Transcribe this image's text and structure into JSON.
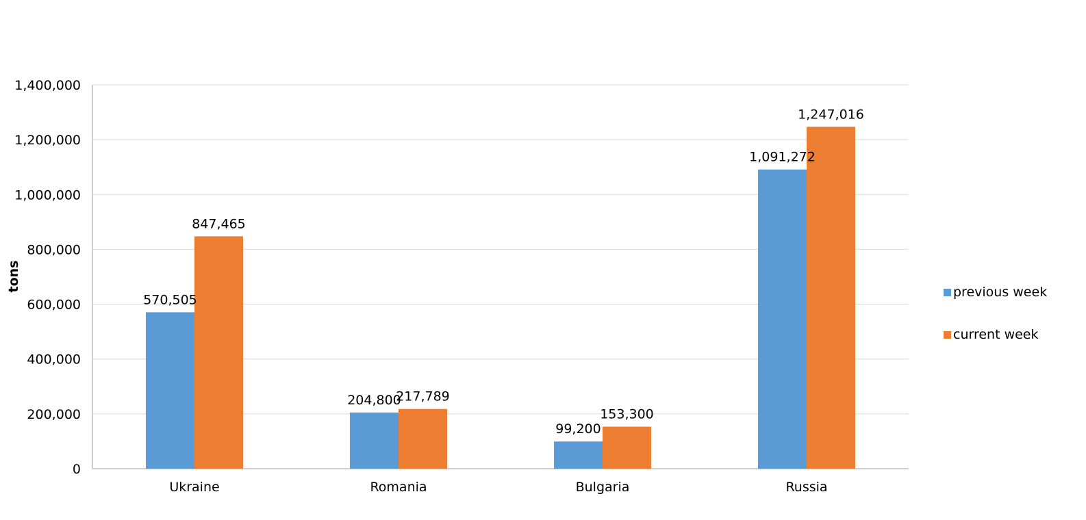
{
  "chart_data": {
    "type": "bar",
    "title": "",
    "xlabel": "",
    "ylabel": "tons",
    "categories": [
      "Ukraine",
      "Romania",
      "Bulgaria",
      "Russia"
    ],
    "series": [
      {
        "name": "previous week",
        "values": [
          570505,
          204800,
          99200,
          1091272
        ],
        "color": "#5b9bd5"
      },
      {
        "name": "current week",
        "values": [
          847465,
          217789,
          153300,
          1247016
        ],
        "color": "#ed7d31"
      }
    ],
    "data_labels": [
      [
        "570,505",
        "204,800",
        "99,200",
        "1,091,272"
      ],
      [
        "847,465",
        "217,789",
        "153,300",
        "1,247,016"
      ]
    ],
    "ylim": [
      0,
      1400000
    ],
    "yticks": [
      0,
      200000,
      400000,
      600000,
      800000,
      1000000,
      1200000,
      1400000
    ],
    "ytick_labels": [
      "0",
      "200,000",
      "400,000",
      "600,000",
      "800,000",
      "1,000,000",
      "1,200,000",
      "1,400,000"
    ],
    "grid": true,
    "legend_position": "right",
    "colors": {
      "gridline": "#d9d9d9",
      "axis": "#bfbfbf"
    }
  }
}
